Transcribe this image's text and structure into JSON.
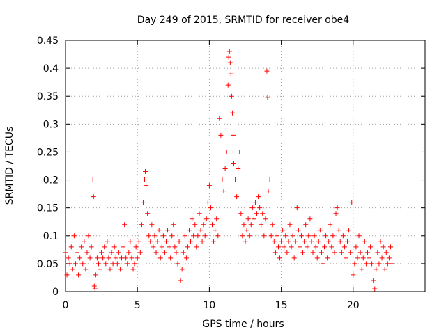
{
  "chart_data": {
    "type": "scatter",
    "title": "Day 249 of 2015, SRMTID for receiver obe4",
    "xlabel": "GPS time / hours",
    "ylabel": "SRMTID / TECUs",
    "xlim": [
      0,
      25
    ],
    "ylim": [
      0,
      0.45
    ],
    "xticks": [
      0,
      5,
      10,
      15,
      20
    ],
    "yticks": [
      0,
      0.05,
      0.1,
      0.15,
      0.2,
      0.25,
      0.3,
      0.35,
      0.4,
      0.45
    ],
    "xtick_labels": [
      "0",
      "5",
      "10",
      "15",
      "20"
    ],
    "ytick_labels": [
      "0",
      "0.05",
      "0.1",
      "0.15",
      "0.2",
      "0.25",
      "0.3",
      "0.35",
      "0.4",
      "0.45"
    ],
    "grid": true,
    "marker": "+",
    "color": "#ff0000",
    "series": [
      {
        "name": "obe4",
        "points": [
          [
            0.0,
            0.07
          ],
          [
            0.1,
            0.03
          ],
          [
            0.2,
            0.06
          ],
          [
            0.3,
            0.05
          ],
          [
            0.4,
            0.08
          ],
          [
            0.5,
            0.04
          ],
          [
            0.6,
            0.1
          ],
          [
            0.7,
            0.05
          ],
          [
            0.8,
            0.07
          ],
          [
            0.9,
            0.03
          ],
          [
            1.0,
            0.06
          ],
          [
            1.1,
            0.08
          ],
          [
            1.2,
            0.05
          ],
          [
            1.3,
            0.09
          ],
          [
            1.4,
            0.04
          ],
          [
            1.5,
            0.07
          ],
          [
            1.6,
            0.1
          ],
          [
            1.7,
            0.06
          ],
          [
            1.8,
            0.08
          ],
          [
            1.9,
            0.2
          ],
          [
            1.95,
            0.17
          ],
          [
            2.0,
            0.01
          ],
          [
            2.05,
            0.005
          ],
          [
            2.1,
            0.03
          ],
          [
            2.2,
            0.06
          ],
          [
            2.3,
            0.05
          ],
          [
            2.4,
            0.04
          ],
          [
            2.5,
            0.07
          ],
          [
            2.6,
            0.06
          ],
          [
            2.7,
            0.08
          ],
          [
            2.8,
            0.05
          ],
          [
            2.9,
            0.09
          ],
          [
            3.0,
            0.06
          ],
          [
            3.1,
            0.04
          ],
          [
            3.2,
            0.07
          ],
          [
            3.3,
            0.05
          ],
          [
            3.4,
            0.08
          ],
          [
            3.5,
            0.06
          ],
          [
            3.6,
            0.05
          ],
          [
            3.7,
            0.07
          ],
          [
            3.8,
            0.04
          ],
          [
            3.9,
            0.06
          ],
          [
            4.0,
            0.08
          ],
          [
            4.1,
            0.12
          ],
          [
            4.2,
            0.06
          ],
          [
            4.3,
            0.05
          ],
          [
            4.4,
            0.07
          ],
          [
            4.5,
            0.09
          ],
          [
            4.6,
            0.06
          ],
          [
            4.7,
            0.04
          ],
          [
            4.8,
            0.05
          ],
          [
            4.9,
            0.08
          ],
          [
            5.0,
            0.06
          ],
          [
            5.1,
            0.09
          ],
          [
            5.2,
            0.07
          ],
          [
            5.3,
            0.12
          ],
          [
            5.4,
            0.16
          ],
          [
            5.5,
            0.2
          ],
          [
            5.55,
            0.215
          ],
          [
            5.6,
            0.19
          ],
          [
            5.7,
            0.14
          ],
          [
            5.8,
            0.1
          ],
          [
            5.9,
            0.09
          ],
          [
            6.0,
            0.12
          ],
          [
            6.1,
            0.08
          ],
          [
            6.2,
            0.1
          ],
          [
            6.3,
            0.07
          ],
          [
            6.4,
            0.09
          ],
          [
            6.5,
            0.11
          ],
          [
            6.6,
            0.06
          ],
          [
            6.7,
            0.08
          ],
          [
            6.8,
            0.1
          ],
          [
            6.9,
            0.07
          ],
          [
            7.0,
            0.09
          ],
          [
            7.1,
            0.11
          ],
          [
            7.2,
            0.08
          ],
          [
            7.3,
            0.06
          ],
          [
            7.4,
            0.1
          ],
          [
            7.5,
            0.12
          ],
          [
            7.6,
            0.08
          ],
          [
            7.7,
            0.07
          ],
          [
            7.8,
            0.05
          ],
          [
            7.9,
            0.09
          ],
          [
            8.0,
            0.02
          ],
          [
            8.1,
            0.04
          ],
          [
            8.2,
            0.07
          ],
          [
            8.3,
            0.1
          ],
          [
            8.4,
            0.06
          ],
          [
            8.5,
            0.08
          ],
          [
            8.6,
            0.11
          ],
          [
            8.7,
            0.09
          ],
          [
            8.8,
            0.13
          ],
          [
            8.9,
            0.1
          ],
          [
            9.0,
            0.12
          ],
          [
            9.1,
            0.08
          ],
          [
            9.2,
            0.1
          ],
          [
            9.3,
            0.14
          ],
          [
            9.4,
            0.11
          ],
          [
            9.5,
            0.09
          ],
          [
            9.6,
            0.12
          ],
          [
            9.7,
            0.1
          ],
          [
            9.8,
            0.13
          ],
          [
            9.9,
            0.16
          ],
          [
            10.0,
            0.19
          ],
          [
            10.1,
            0.15
          ],
          [
            10.2,
            0.12
          ],
          [
            10.3,
            0.09
          ],
          [
            10.4,
            0.11
          ],
          [
            10.5,
            0.13
          ],
          [
            10.6,
            0.1
          ],
          [
            10.7,
            0.31
          ],
          [
            10.8,
            0.28
          ],
          [
            10.9,
            0.2
          ],
          [
            11.0,
            0.18
          ],
          [
            11.1,
            0.22
          ],
          [
            11.2,
            0.25
          ],
          [
            11.3,
            0.37
          ],
          [
            11.35,
            0.42
          ],
          [
            11.4,
            0.43
          ],
          [
            11.45,
            0.41
          ],
          [
            11.5,
            0.39
          ],
          [
            11.55,
            0.35
          ],
          [
            11.6,
            0.32
          ],
          [
            11.65,
            0.28
          ],
          [
            11.7,
            0.23
          ],
          [
            11.8,
            0.2
          ],
          [
            11.9,
            0.17
          ],
          [
            12.0,
            0.22
          ],
          [
            12.1,
            0.25
          ],
          [
            12.2,
            0.14
          ],
          [
            12.3,
            0.1
          ],
          [
            12.4,
            0.12
          ],
          [
            12.5,
            0.09
          ],
          [
            12.6,
            0.11
          ],
          [
            12.7,
            0.13
          ],
          [
            12.8,
            0.1
          ],
          [
            12.9,
            0.12
          ],
          [
            13.0,
            0.15
          ],
          [
            13.1,
            0.13
          ],
          [
            13.2,
            0.16
          ],
          [
            13.3,
            0.14
          ],
          [
            13.4,
            0.17
          ],
          [
            13.5,
            0.15
          ],
          [
            13.6,
            0.12
          ],
          [
            13.7,
            0.14
          ],
          [
            13.8,
            0.1
          ],
          [
            13.9,
            0.13
          ],
          [
            14.0,
            0.395
          ],
          [
            14.05,
            0.348
          ],
          [
            14.1,
            0.18
          ],
          [
            14.2,
            0.2
          ],
          [
            14.3,
            0.1
          ],
          [
            14.4,
            0.12
          ],
          [
            14.5,
            0.09
          ],
          [
            14.6,
            0.07
          ],
          [
            14.7,
            0.1
          ],
          [
            14.8,
            0.08
          ],
          [
            14.9,
            0.06
          ],
          [
            15.0,
            0.09
          ],
          [
            15.1,
            0.11
          ],
          [
            15.2,
            0.08
          ],
          [
            15.3,
            0.1
          ],
          [
            15.4,
            0.07
          ],
          [
            15.5,
            0.09
          ],
          [
            15.6,
            0.12
          ],
          [
            15.7,
            0.08
          ],
          [
            15.8,
            0.1
          ],
          [
            15.9,
            0.06
          ],
          [
            16.0,
            0.09
          ],
          [
            16.1,
            0.15
          ],
          [
            16.2,
            0.11
          ],
          [
            16.3,
            0.08
          ],
          [
            16.4,
            0.1
          ],
          [
            16.5,
            0.07
          ],
          [
            16.6,
            0.09
          ],
          [
            16.7,
            0.12
          ],
          [
            16.8,
            0.08
          ],
          [
            16.9,
            0.1
          ],
          [
            17.0,
            0.13
          ],
          [
            17.1,
            0.09
          ],
          [
            17.2,
            0.07
          ],
          [
            17.3,
            0.1
          ],
          [
            17.4,
            0.08
          ],
          [
            17.5,
            0.06
          ],
          [
            17.6,
            0.09
          ],
          [
            17.7,
            0.11
          ],
          [
            17.8,
            0.07
          ],
          [
            17.9,
            0.05
          ],
          [
            18.0,
            0.08
          ],
          [
            18.1,
            0.1
          ],
          [
            18.2,
            0.06
          ],
          [
            18.3,
            0.09
          ],
          [
            18.4,
            0.12
          ],
          [
            18.5,
            0.08
          ],
          [
            18.6,
            0.1
          ],
          [
            18.7,
            0.07
          ],
          [
            18.8,
            0.14
          ],
          [
            18.9,
            0.15
          ],
          [
            19.0,
            0.11
          ],
          [
            19.1,
            0.09
          ],
          [
            19.2,
            0.07
          ],
          [
            19.3,
            0.1
          ],
          [
            19.4,
            0.08
          ],
          [
            19.5,
            0.06
          ],
          [
            19.6,
            0.09
          ],
          [
            19.7,
            0.11
          ],
          [
            19.8,
            0.07
          ],
          [
            19.9,
            0.16
          ],
          [
            20.0,
            0.03
          ],
          [
            20.1,
            0.05
          ],
          [
            20.2,
            0.08
          ],
          [
            20.3,
            0.06
          ],
          [
            20.4,
            0.1
          ],
          [
            20.5,
            0.07
          ],
          [
            20.6,
            0.04
          ],
          [
            20.7,
            0.06
          ],
          [
            20.8,
            0.09
          ],
          [
            20.9,
            0.05
          ],
          [
            21.0,
            0.07
          ],
          [
            21.1,
            0.06
          ],
          [
            21.2,
            0.08
          ],
          [
            21.3,
            0.05
          ],
          [
            21.4,
            0.02
          ],
          [
            21.5,
            0.005
          ],
          [
            21.6,
            0.04
          ],
          [
            21.7,
            0.07
          ],
          [
            21.8,
            0.05
          ],
          [
            21.9,
            0.09
          ],
          [
            22.0,
            0.06
          ],
          [
            22.1,
            0.08
          ],
          [
            22.2,
            0.04
          ],
          [
            22.3,
            0.07
          ],
          [
            22.4,
            0.05
          ],
          [
            22.5,
            0.06
          ],
          [
            22.6,
            0.08
          ],
          [
            22.7,
            0.05
          ]
        ]
      }
    ]
  }
}
